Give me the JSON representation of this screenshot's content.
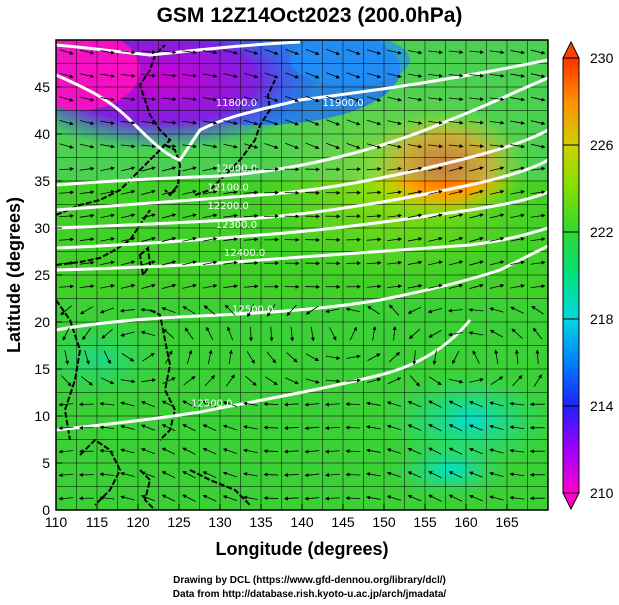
{
  "title": "GSM 12Z14Oct2023 (200.0hPa)",
  "credits": {
    "drawing": "Drawing by DCL (https://www.gfd-dennou.org/library/dcl/)",
    "data": "Data from http://database.rish.kyoto-u.ac.jp/arch/jmadata/"
  },
  "chart_data": {
    "type": "heatmap",
    "title": "GSM 12Z14Oct2023 (200.0hPa)",
    "xlabel": "Longitude (degrees)",
    "ylabel": "Latitude  (degrees)",
    "xlim": [
      110,
      170
    ],
    "ylim": [
      0,
      50
    ],
    "x_ticks": [
      "110",
      "115",
      "120",
      "125",
      "130",
      "135",
      "140",
      "145",
      "150",
      "155",
      "160",
      "165"
    ],
    "y_ticks": [
      "0",
      "5",
      "10",
      "15",
      "20",
      "25",
      "30",
      "35",
      "40",
      "45"
    ],
    "colorbar": {
      "min": 210,
      "max": 230,
      "ticks": [
        "210",
        "214",
        "218",
        "222",
        "226",
        "230"
      ],
      "colors": [
        "#ff00c8",
        "#8000ff",
        "#0028ff",
        "#00aaff",
        "#00e0c0",
        "#00e070",
        "#40d020",
        "#a0e000",
        "#ffc000",
        "#ff5000"
      ]
    },
    "contour_labels": [
      {
        "text": "11800.0",
        "lon": 132,
        "lat": 43
      },
      {
        "text": "11900.0",
        "lon": 145,
        "lat": 43
      },
      {
        "text": "12000.0",
        "lon": 132,
        "lat": 36
      },
      {
        "text": "12100.0",
        "lon": 131,
        "lat": 34
      },
      {
        "text": "12200.0",
        "lon": 131,
        "lat": 32
      },
      {
        "text": "12300.0",
        "lon": 132,
        "lat": 30
      },
      {
        "text": "12400.0",
        "lon": 133,
        "lat": 27
      },
      {
        "text": "12500.0",
        "lon": 134,
        "lat": 21
      },
      {
        "text": "12500.0",
        "lon": 129,
        "lat": 11
      }
    ]
  }
}
